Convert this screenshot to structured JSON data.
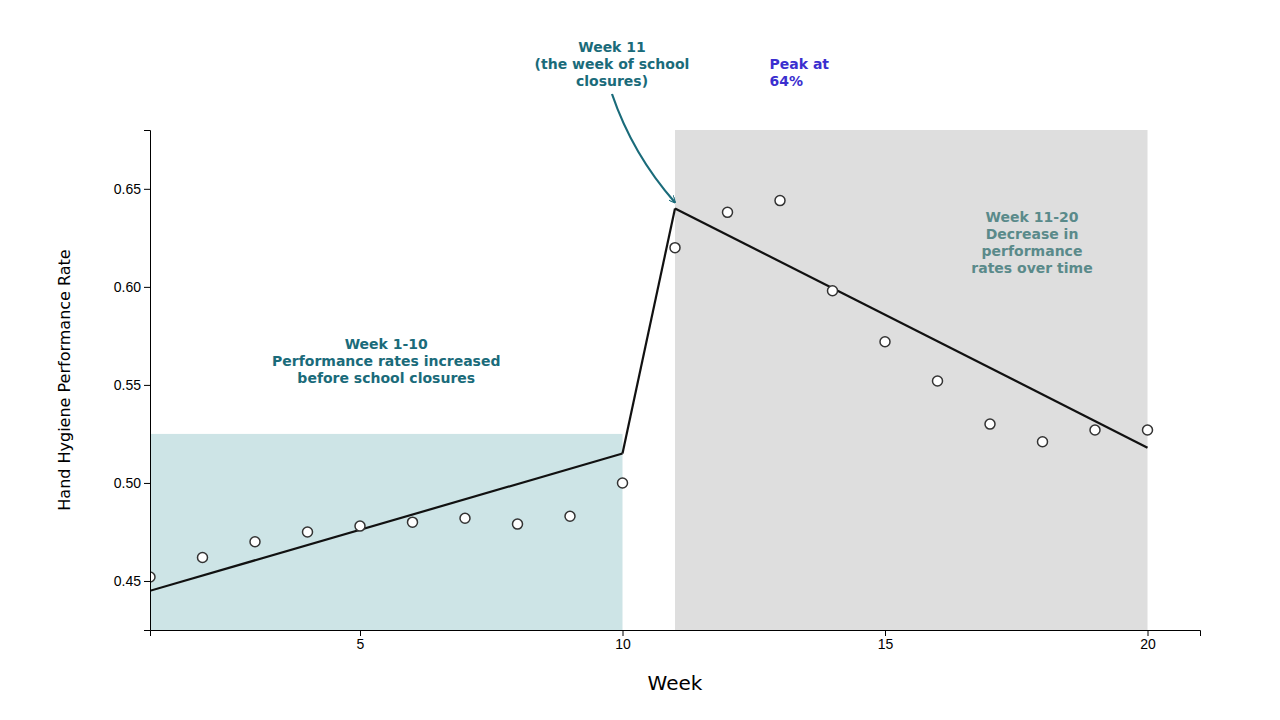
{
  "chart_data": {
    "type": "scatter",
    "xlabel": "Week",
    "ylabel": "Hand Hygiene Performance Rate",
    "xlim": [
      1,
      21
    ],
    "ylim": [
      0.425,
      0.68
    ],
    "xticks": [
      5,
      10,
      15,
      20
    ],
    "yticks": [
      0.45,
      {
        "value": 0.5,
        "label": "0.50"
      },
      0.55,
      {
        "value": 0.6,
        "label": "0.60"
      },
      0.65
    ],
    "grid": false,
    "bands": [
      {
        "x": [
          1,
          10
        ],
        "y": [
          0.425,
          0.525
        ],
        "color": "#b8d8dc"
      },
      {
        "x": [
          11,
          20
        ],
        "y": [
          0.425,
          0.68
        ],
        "color": "#d0d0d0"
      }
    ],
    "series": [
      {
        "type": "line",
        "color": "#111111",
        "line_style": "solid",
        "x": [
          1,
          10
        ],
        "values": [
          0.445,
          0.515
        ]
      },
      {
        "type": "line",
        "color": "#111111",
        "line_style": "solid",
        "x": [
          10,
          11
        ],
        "values": [
          0.515,
          0.64
        ]
      },
      {
        "type": "line",
        "color": "#111111",
        "line_style": "solid",
        "x": [
          11,
          20
        ],
        "values": [
          0.64,
          0.518
        ]
      },
      {
        "type": "scatter",
        "color": "#333333",
        "marker": "open-circle",
        "x": [
          1,
          2,
          3,
          4,
          5,
          6,
          7,
          8,
          9,
          10
        ],
        "values": [
          0.452,
          0.462,
          0.47,
          0.475,
          0.478,
          0.48,
          0.482,
          0.479,
          0.483,
          0.5
        ]
      },
      {
        "type": "scatter",
        "color": "#333333",
        "marker": "open-circle",
        "x": [
          11,
          12,
          13,
          14,
          15,
          16,
          17,
          18,
          19,
          20
        ],
        "values": [
          0.62,
          0.638,
          0.644,
          0.598,
          0.572,
          0.552,
          0.53,
          0.521,
          0.527,
          0.527
        ]
      }
    ],
    "annotations": [
      {
        "text": "Week 11\n(the week of school\nclosures)",
        "color": "#1a6b7a",
        "point": [
          11.0,
          0.64
        ]
      },
      {
        "text": "Peak at\n64%",
        "color": "#3b2fcf"
      },
      {
        "text": "Week 1-10\nPerformance rates increased\nbefore school closures",
        "color": "#1a6b7a"
      },
      {
        "text": "Week 11-20\nDecrease in\nperformance\nrates over time",
        "color": "#5a8a8a"
      }
    ]
  }
}
